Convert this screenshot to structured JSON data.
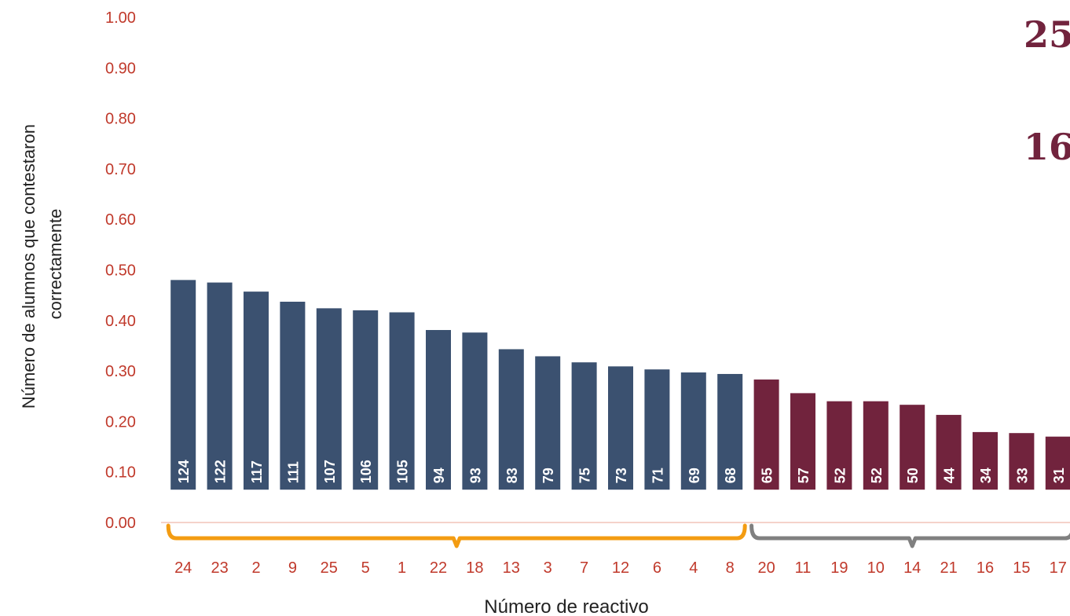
{
  "chart_data": {
    "type": "bar",
    "xlabel": "Número de reactivo",
    "ylabel_lines": [
      "Número de alumnos que contestaron",
      "correctamente"
    ],
    "ylim": [
      0,
      1.0
    ],
    "yticks": [
      "0.00",
      "0.10",
      "0.20",
      "0.30",
      "0.40",
      "0.50",
      "0.60",
      "0.70",
      "0.80",
      "0.90",
      "1.00"
    ],
    "grid": false,
    "categories": [
      "24",
      "23",
      "2",
      "9",
      "25",
      "5",
      "1",
      "22",
      "18",
      "13",
      "3",
      "7",
      "12",
      "6",
      "4",
      "8",
      "20",
      "11",
      "19",
      "10",
      "14",
      "21",
      "16",
      "15",
      "17"
    ],
    "values": [
      0.48,
      0.475,
      0.457,
      0.437,
      0.424,
      0.42,
      0.416,
      0.381,
      0.376,
      0.343,
      0.329,
      0.317,
      0.309,
      0.303,
      0.297,
      0.294,
      0.283,
      0.256,
      0.24,
      0.24,
      0.233,
      0.213,
      0.179,
      0.177,
      0.17
    ],
    "bar_labels": [
      "124",
      "122",
      "117",
      "111",
      "107",
      "106",
      "105",
      "94",
      "93",
      "83",
      "79",
      "75",
      "73",
      "71",
      "69",
      "68",
      "65",
      "57",
      "52",
      "52",
      "50",
      "44",
      "34",
      "33",
      "31"
    ],
    "bar_colors": [
      "#3b5170",
      "#3b5170",
      "#3b5170",
      "#3b5170",
      "#3b5170",
      "#3b5170",
      "#3b5170",
      "#3b5170",
      "#3b5170",
      "#3b5170",
      "#3b5170",
      "#3b5170",
      "#3b5170",
      "#3b5170",
      "#3b5170",
      "#3b5170",
      "#71233d",
      "#71233d",
      "#71233d",
      "#71233d",
      "#71233d",
      "#71233d",
      "#71233d",
      "#71233d",
      "#71233d"
    ],
    "bar_base_value": 0.065,
    "brackets": [
      {
        "from_index": 0,
        "to_index": 15,
        "color": "#f39c12"
      },
      {
        "from_index": 16,
        "to_index": 24,
        "color": "#808080"
      }
    ],
    "annotations": [
      "25",
      "16"
    ]
  },
  "colors": {
    "tick_text": "#c0392b",
    "axis_line": "#f2c4b8",
    "annotation": "#71233d",
    "bar_label": "#ffffff"
  }
}
